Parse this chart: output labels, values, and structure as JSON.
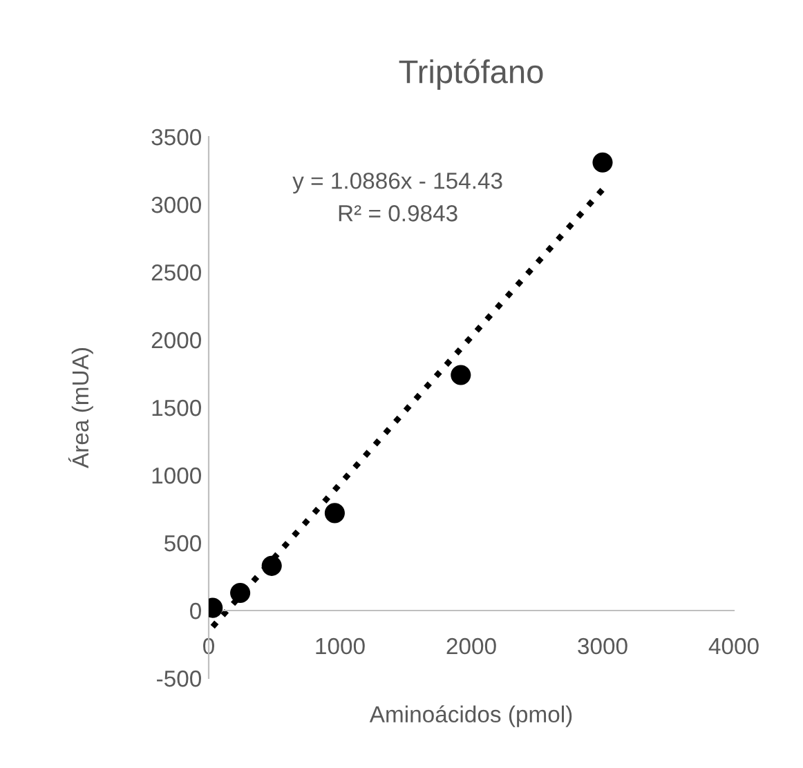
{
  "chart_data": {
    "type": "scatter",
    "title": "Triptófano",
    "xlabel": "Aminoácidos (pmol)",
    "ylabel": "Área (mUA)",
    "xlim": [
      0,
      4000
    ],
    "xticks": [
      0,
      1000,
      2000,
      3000,
      4000
    ],
    "ylim": [
      -500,
      3500
    ],
    "yticks": [
      -500,
      0,
      500,
      1000,
      1500,
      2000,
      2500,
      3000,
      3500
    ],
    "grid": false,
    "legend": false,
    "marker": "circle",
    "annotations": [
      "y = 1.0886x - 154.43",
      "R² = 0.9843"
    ],
    "series": [
      {
        "color": "#000000",
        "x": [
          30,
          240,
          480,
          960,
          1920,
          3000
        ],
        "values": [
          20,
          130,
          330,
          720,
          1740,
          3310
        ]
      },
      {
        "type": "line",
        "color": "#000000",
        "line_style": "dotted",
        "marker": "none",
        "x": [
          30,
          3000
        ],
        "values": [
          -120,
          3110
        ]
      }
    ]
  }
}
